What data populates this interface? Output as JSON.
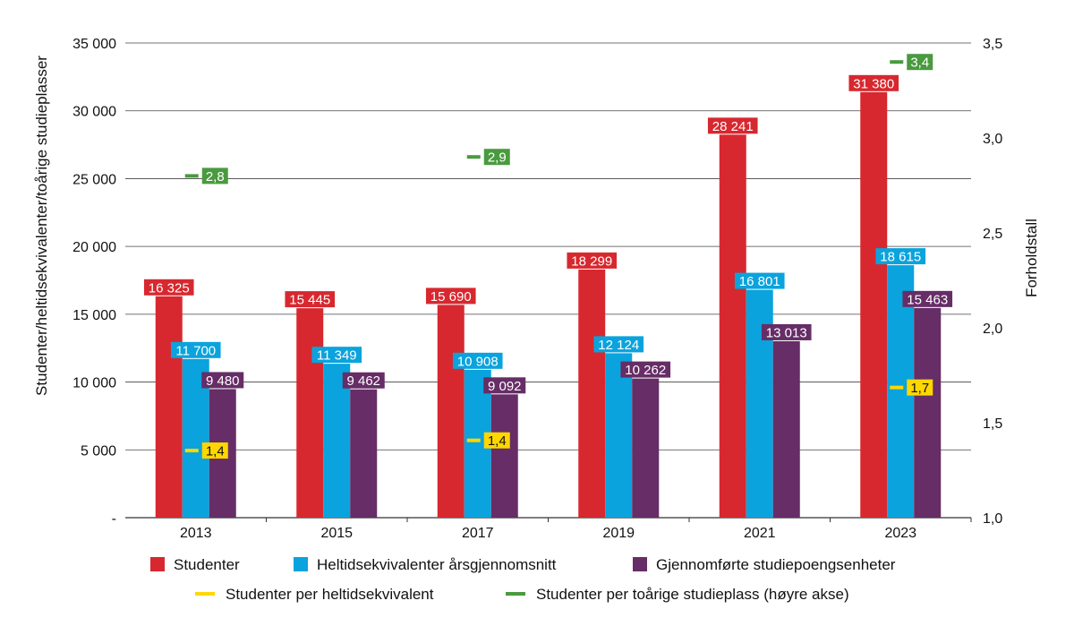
{
  "colors": {
    "studenter": "#d7282f",
    "heltid": "#0aa3dd",
    "gjennomforte": "#662d66",
    "per_heltid": "#ffd700",
    "per_studieplass": "#4a9a3f",
    "grid": "#444444",
    "text": "#111111"
  },
  "chart_data": {
    "type": "bar",
    "categories": [
      "2013",
      "2015",
      "2017",
      "2019",
      "2021",
      "2023"
    ],
    "ylabel": "Studenter/heltidsekvivalenter/toårige studieplasser",
    "y2label": "Forholdstall",
    "ylim": [
      0,
      35000
    ],
    "y2lim": [
      1.0,
      3.5
    ],
    "yticks": [
      "-",
      "5 000",
      "10 000",
      "15 000",
      "20 000",
      "25 000",
      "30 000",
      "35 000"
    ],
    "y2ticks": [
      "1,0",
      "1,5",
      "2,0",
      "2,5",
      "3,0",
      "3,5"
    ],
    "grid": true,
    "legend_position": "bottom",
    "series": [
      {
        "name": "Studenter",
        "values": [
          16325,
          15445,
          15690,
          18299,
          28241,
          31380
        ],
        "labels": [
          "16 325",
          "15 445",
          "15 690",
          "18 299",
          "28 241",
          "31 380"
        ]
      },
      {
        "name": "Heltidsekvivalenter årsgjennomsnitt",
        "values": [
          11700,
          11349,
          10908,
          12124,
          16801,
          18615
        ],
        "labels": [
          "11 700",
          "11 349",
          "10 908",
          "12 124",
          "16 801",
          "18 615"
        ]
      },
      {
        "name": "Gjennomførte studiepoengsenheter",
        "values": [
          9480,
          9462,
          9092,
          10262,
          13013,
          15463
        ],
        "labels": [
          "9 480",
          "9 462",
          "9 092",
          "10 262",
          "13 013",
          "15 463"
        ]
      }
    ],
    "markers": [
      {
        "name": "Studenter per heltidsekvivalent",
        "axis": "left",
        "points": [
          {
            "category": "2013",
            "y": 4950,
            "label": "1,4"
          },
          {
            "category": "2017",
            "y": 5700,
            "label": "1,4"
          },
          {
            "category": "2023",
            "y": 9600,
            "label": "1,7"
          }
        ]
      },
      {
        "name": "Studenter per toårige studieplass (høyre akse)",
        "axis": "right",
        "points": [
          {
            "category": "2013",
            "y": 2.8,
            "label": "2,8"
          },
          {
            "category": "2017",
            "y": 2.9,
            "label": "2,9"
          },
          {
            "category": "2023",
            "y": 3.4,
            "label": "3,4"
          }
        ]
      }
    ]
  }
}
